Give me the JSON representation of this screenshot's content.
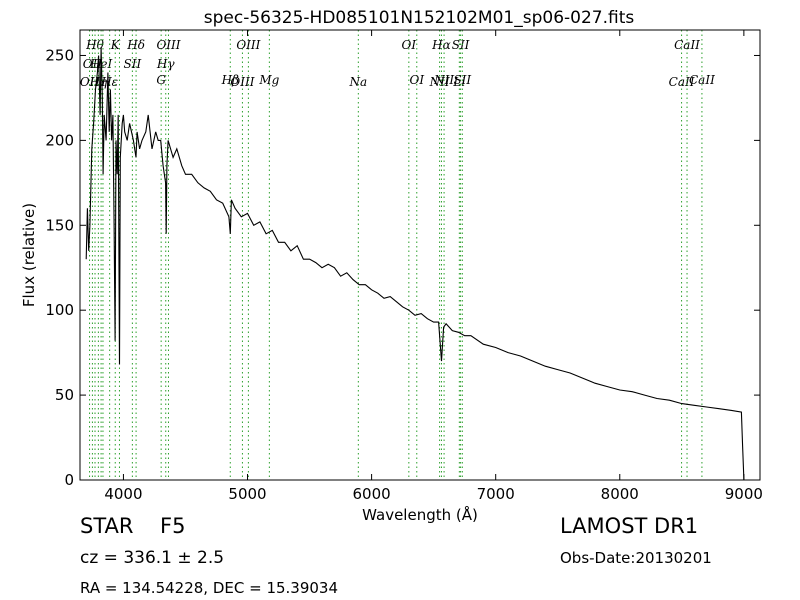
{
  "chart_data": {
    "type": "line",
    "title": "spec-56325-HD085101N152102M01_sp06-027.fits",
    "xlabel": "Wavelength (Å)",
    "ylabel": "Flux (relative)",
    "xlim": [
      3650,
      9130
    ],
    "ylim": [
      0,
      265
    ],
    "xticks": [
      4000,
      5000,
      6000,
      7000,
      8000,
      9000
    ],
    "yticks": [
      0,
      50,
      100,
      150,
      200,
      250
    ],
    "grid": false,
    "line_color": "#000000",
    "marker_color": "#2ca02c",
    "series": [
      {
        "x": [
          3700,
          3710,
          3720,
          3730,
          3745,
          3760,
          3775,
          3790,
          3800,
          3812,
          3820,
          3830,
          3836,
          3845,
          3860,
          3875,
          3885,
          3895,
          3905,
          3915,
          3925,
          3933,
          3940,
          3950,
          3958,
          3968,
          3975,
          3990,
          4000,
          4010,
          4030,
          4050,
          4080,
          4101,
          4110,
          4130,
          4150,
          4180,
          4200,
          4230,
          4260,
          4280,
          4300,
          4320,
          4340,
          4345,
          4350,
          4360,
          4380,
          4400,
          4430,
          4470,
          4500,
          4550,
          4600,
          4650,
          4700,
          4750,
          4800,
          4850,
          4861,
          4870,
          4900,
          4950,
          5000,
          5050,
          5100,
          5150,
          5200,
          5250,
          5300,
          5350,
          5400,
          5450,
          5500,
          5550,
          5600,
          5650,
          5700,
          5750,
          5800,
          5850,
          5900,
          5950,
          6000,
          6050,
          6100,
          6150,
          6200,
          6250,
          6300,
          6350,
          6400,
          6450,
          6500,
          6540,
          6563,
          6580,
          6600,
          6650,
          6700,
          6750,
          6800,
          6900,
          7000,
          7100,
          7200,
          7300,
          7400,
          7500,
          7600,
          7700,
          7800,
          7900,
          8000,
          8100,
          8200,
          8300,
          8400,
          8500,
          8600,
          8700,
          8800,
          8900,
          8980,
          8990,
          9000
        ],
        "y": [
          130,
          160,
          135,
          150,
          195,
          210,
          230,
          240,
          250,
          215,
          255,
          225,
          180,
          215,
          200,
          240,
          205,
          230,
          200,
          215,
          150,
          82,
          200,
          180,
          215,
          68,
          190,
          210,
          215,
          205,
          200,
          210,
          200,
          190,
          205,
          195,
          200,
          205,
          215,
          195,
          205,
          200,
          200,
          185,
          175,
          145,
          185,
          200,
          195,
          190,
          195,
          185,
          180,
          180,
          175,
          172,
          170,
          165,
          163,
          155,
          145,
          165,
          160,
          155,
          157,
          150,
          152,
          145,
          147,
          140,
          140,
          135,
          138,
          130,
          130,
          128,
          125,
          127,
          125,
          120,
          122,
          118,
          115,
          115,
          112,
          110,
          107,
          108,
          105,
          102,
          100,
          97,
          98,
          95,
          93,
          93,
          70,
          90,
          92,
          88,
          87,
          85,
          85,
          80,
          78,
          75,
          73,
          70,
          67,
          65,
          63,
          60,
          57,
          55,
          53,
          52,
          50,
          48,
          47,
          45,
          44,
          43,
          42,
          41,
          40,
          20,
          0
        ]
      }
    ],
    "lines": [
      {
        "x": 3727,
        "labels": [
          "OII"
        ],
        "label_tiers": [
          2
        ]
      },
      {
        "x": 3750,
        "labels": [
          "OII"
        ],
        "label_tiers": [
          1
        ]
      },
      {
        "x": 3771,
        "labels": [
          "Hθ"
        ],
        "label_tiers": [
          0
        ]
      },
      {
        "x": 3798,
        "labels": [
          "Hη"
        ],
        "label_tiers": [
          2
        ]
      },
      {
        "x": 3820,
        "labels": [
          "HeI"
        ],
        "label_tiers": [
          1
        ]
      },
      {
        "x": 3835,
        "labels": [],
        "label_tiers": []
      },
      {
        "x": 3889,
        "labels": [
          "Hε"
        ],
        "label_tiers": [
          2
        ]
      },
      {
        "x": 3934,
        "labels": [
          "K"
        ],
        "label_tiers": [
          0
        ]
      },
      {
        "x": 3968,
        "labels": [],
        "label_tiers": []
      },
      {
        "x": 4072,
        "labels": [
          "SII"
        ],
        "label_tiers": [
          1
        ]
      },
      {
        "x": 4102,
        "labels": [
          "Hδ"
        ],
        "label_tiers": [
          0
        ]
      },
      {
        "x": 4304,
        "labels": [
          "G"
        ],
        "label_tiers": [
          3
        ]
      },
      {
        "x": 4341,
        "labels": [
          "Hγ"
        ],
        "label_tiers": [
          1
        ]
      },
      {
        "x": 4363,
        "labels": [
          "OIII"
        ],
        "label_tiers": [
          0
        ]
      },
      {
        "x": 4861,
        "labels": [
          "Hβ"
        ],
        "label_tiers": [
          3
        ]
      },
      {
        "x": 4959,
        "labels": [
          "OIII"
        ],
        "label_tiers": [
          2
        ]
      },
      {
        "x": 5007,
        "labels": [
          "OIII"
        ],
        "label_tiers": [
          0
        ]
      },
      {
        "x": 5176,
        "labels": [
          "Mg"
        ],
        "label_tiers": [
          3
        ]
      },
      {
        "x": 5893,
        "labels": [
          "Na"
        ],
        "label_tiers": [
          2
        ]
      },
      {
        "x": 6300,
        "labels": [
          "OI"
        ],
        "label_tiers": [
          0
        ]
      },
      {
        "x": 6364,
        "labels": [
          "OI"
        ],
        "label_tiers": [
          3
        ]
      },
      {
        "x": 6548,
        "labels": [
          "NII"
        ],
        "label_tiers": [
          2
        ]
      },
      {
        "x": 6563,
        "labels": [
          "Hα"
        ],
        "label_tiers": [
          0
        ]
      },
      {
        "x": 6584,
        "labels": [
          "NII"
        ],
        "label_tiers": [
          3
        ]
      },
      {
        "x": 6707,
        "labels": [
          "Li"
        ],
        "label_tiers": [
          2
        ]
      },
      {
        "x": 6717,
        "labels": [
          "SII"
        ],
        "label_tiers": [
          0
        ]
      },
      {
        "x": 6731,
        "labels": [
          "SII"
        ],
        "label_tiers": [
          3
        ]
      },
      {
        "x": 8498,
        "labels": [
          "CaII"
        ],
        "label_tiers": [
          2
        ]
      },
      {
        "x": 8542,
        "labels": [
          "CaII"
        ],
        "label_tiers": [
          0
        ]
      },
      {
        "x": 8662,
        "labels": [
          "CaII"
        ],
        "label_tiers": [
          3
        ]
      }
    ]
  },
  "info": {
    "object_class": "STAR",
    "subclass": "F5",
    "survey": "LAMOST DR1",
    "redshift": "cz = 336.1 ± 2.5",
    "obs_date": "Obs-Date:20130201",
    "coords": "RA = 134.54228, DEC = 15.39034"
  }
}
